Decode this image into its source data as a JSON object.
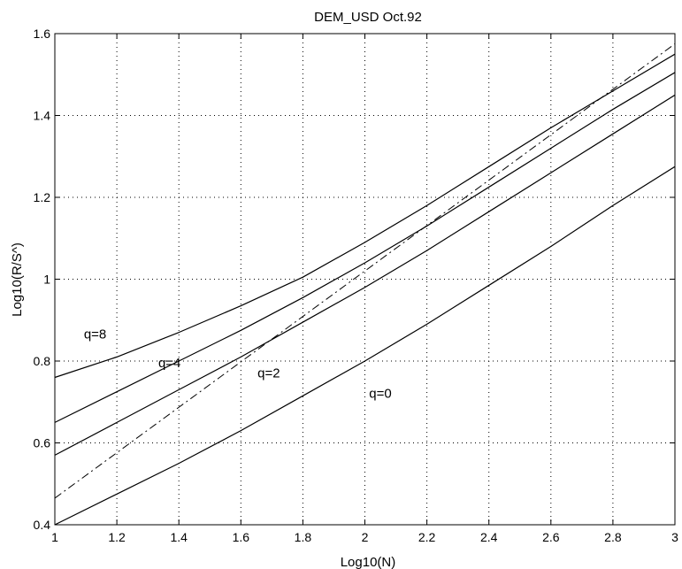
{
  "chart_data": {
    "type": "line",
    "title": "DEM_USD Oct.92",
    "xlabel": "Log10(N)",
    "ylabel": "Log10(R/S^)",
    "xlim": [
      1,
      3
    ],
    "ylim": [
      0.4,
      1.6
    ],
    "xticks": [
      "1",
      "1.2",
      "1.4",
      "1.6",
      "1.8",
      "2",
      "2.2",
      "2.4",
      "2.6",
      "2.8",
      "3"
    ],
    "yticks": [
      "0.4",
      "0.6",
      "0.8",
      "1",
      "1.2",
      "1.4",
      "1.6"
    ],
    "grid": "dotted",
    "series": [
      {
        "name": "q=8",
        "style": "solid",
        "x": [
          1.0,
          1.2,
          1.4,
          1.6,
          1.8,
          2.0,
          2.2,
          2.4,
          2.6,
          2.8,
          3.0
        ],
        "y": [
          0.76,
          0.81,
          0.87,
          0.935,
          1.005,
          1.09,
          1.18,
          1.275,
          1.37,
          1.46,
          1.55
        ]
      },
      {
        "name": "q=4",
        "style": "solid",
        "x": [
          1.0,
          1.2,
          1.4,
          1.6,
          1.8,
          2.0,
          2.2,
          2.4,
          2.6,
          2.8,
          3.0
        ],
        "y": [
          0.65,
          0.725,
          0.8,
          0.875,
          0.955,
          1.04,
          1.13,
          1.225,
          1.32,
          1.415,
          1.505
        ]
      },
      {
        "name": "q=2",
        "style": "solid",
        "x": [
          1.0,
          1.2,
          1.4,
          1.6,
          1.8,
          2.0,
          2.2,
          2.4,
          2.6,
          2.8,
          3.0
        ],
        "y": [
          0.57,
          0.65,
          0.73,
          0.81,
          0.895,
          0.98,
          1.07,
          1.165,
          1.26,
          1.355,
          1.45
        ]
      },
      {
        "name": "q=0",
        "style": "solid",
        "x": [
          1.0,
          1.2,
          1.4,
          1.6,
          1.8,
          2.0,
          2.2,
          2.4,
          2.6,
          2.8,
          3.0
        ],
        "y": [
          0.4,
          0.475,
          0.55,
          0.63,
          0.715,
          0.8,
          0.89,
          0.985,
          1.08,
          1.18,
          1.275
        ]
      },
      {
        "style": "dash-dot",
        "x": [
          1.0,
          3.0
        ],
        "y": [
          0.465,
          1.575
        ]
      }
    ],
    "annotations": [
      {
        "text": "q=8",
        "x": 1.13,
        "y": 0.855
      },
      {
        "text": "q=4",
        "x": 1.37,
        "y": 0.785
      },
      {
        "text": "q=2",
        "x": 1.69,
        "y": 0.76
      },
      {
        "text": "q=0",
        "x": 2.05,
        "y": 0.71
      }
    ]
  }
}
